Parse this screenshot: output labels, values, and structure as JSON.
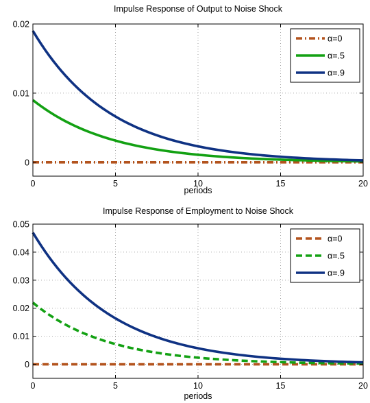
{
  "chart_data": [
    {
      "type": "line",
      "title": "Impulse Response of Output to Noise Shock",
      "xlabel": "periods",
      "ylabel": "",
      "xlim": [
        0,
        20
      ],
      "ylim": [
        -0.002,
        0.02
      ],
      "xticks": [
        "0",
        "5",
        "10",
        "15",
        "20"
      ],
      "xtick_values": [
        0,
        5,
        10,
        15,
        20
      ],
      "yticks": [
        "0",
        "0.01",
        "0.02"
      ],
      "ytick_values": [
        0,
        0.01,
        0.02
      ],
      "grid": true,
      "legend": "top-right",
      "series": [
        {
          "name": "α=0",
          "color": "#b3541e",
          "style": "dashdot",
          "y0": 0,
          "decay": 0
        },
        {
          "name": "α=.5",
          "color": "#13a113",
          "style": "solid",
          "y0": 0.009,
          "decay": 0.81
        },
        {
          "name": "α=.9",
          "color": "#0f3283",
          "style": "solid",
          "y0": 0.019,
          "decay": 0.81
        }
      ]
    },
    {
      "type": "line",
      "title": "Impulse Response of Employment to Noise Shock",
      "xlabel": "periods",
      "ylabel": "",
      "xlim": [
        0,
        20
      ],
      "ylim": [
        -0.005,
        0.05
      ],
      "xticks": [
        "0",
        "5",
        "10",
        "15",
        "20"
      ],
      "xtick_values": [
        0,
        5,
        10,
        15,
        20
      ],
      "yticks": [
        "0",
        "0.01",
        "0.02",
        "0.03",
        "0.04",
        "0.05"
      ],
      "ytick_values": [
        0,
        0.01,
        0.02,
        0.03,
        0.04,
        0.05
      ],
      "grid": true,
      "legend": "top-right",
      "series": [
        {
          "name": "α=0",
          "color": "#b3541e",
          "style": "dashed",
          "y0": 0,
          "decay": 0
        },
        {
          "name": "α=.5",
          "color": "#13a113",
          "style": "dashed",
          "y0": 0.022,
          "decay": 0.8
        },
        {
          "name": "α=.9",
          "color": "#0f3283",
          "style": "solid",
          "y0": 0.047,
          "decay": 0.81
        }
      ]
    }
  ]
}
